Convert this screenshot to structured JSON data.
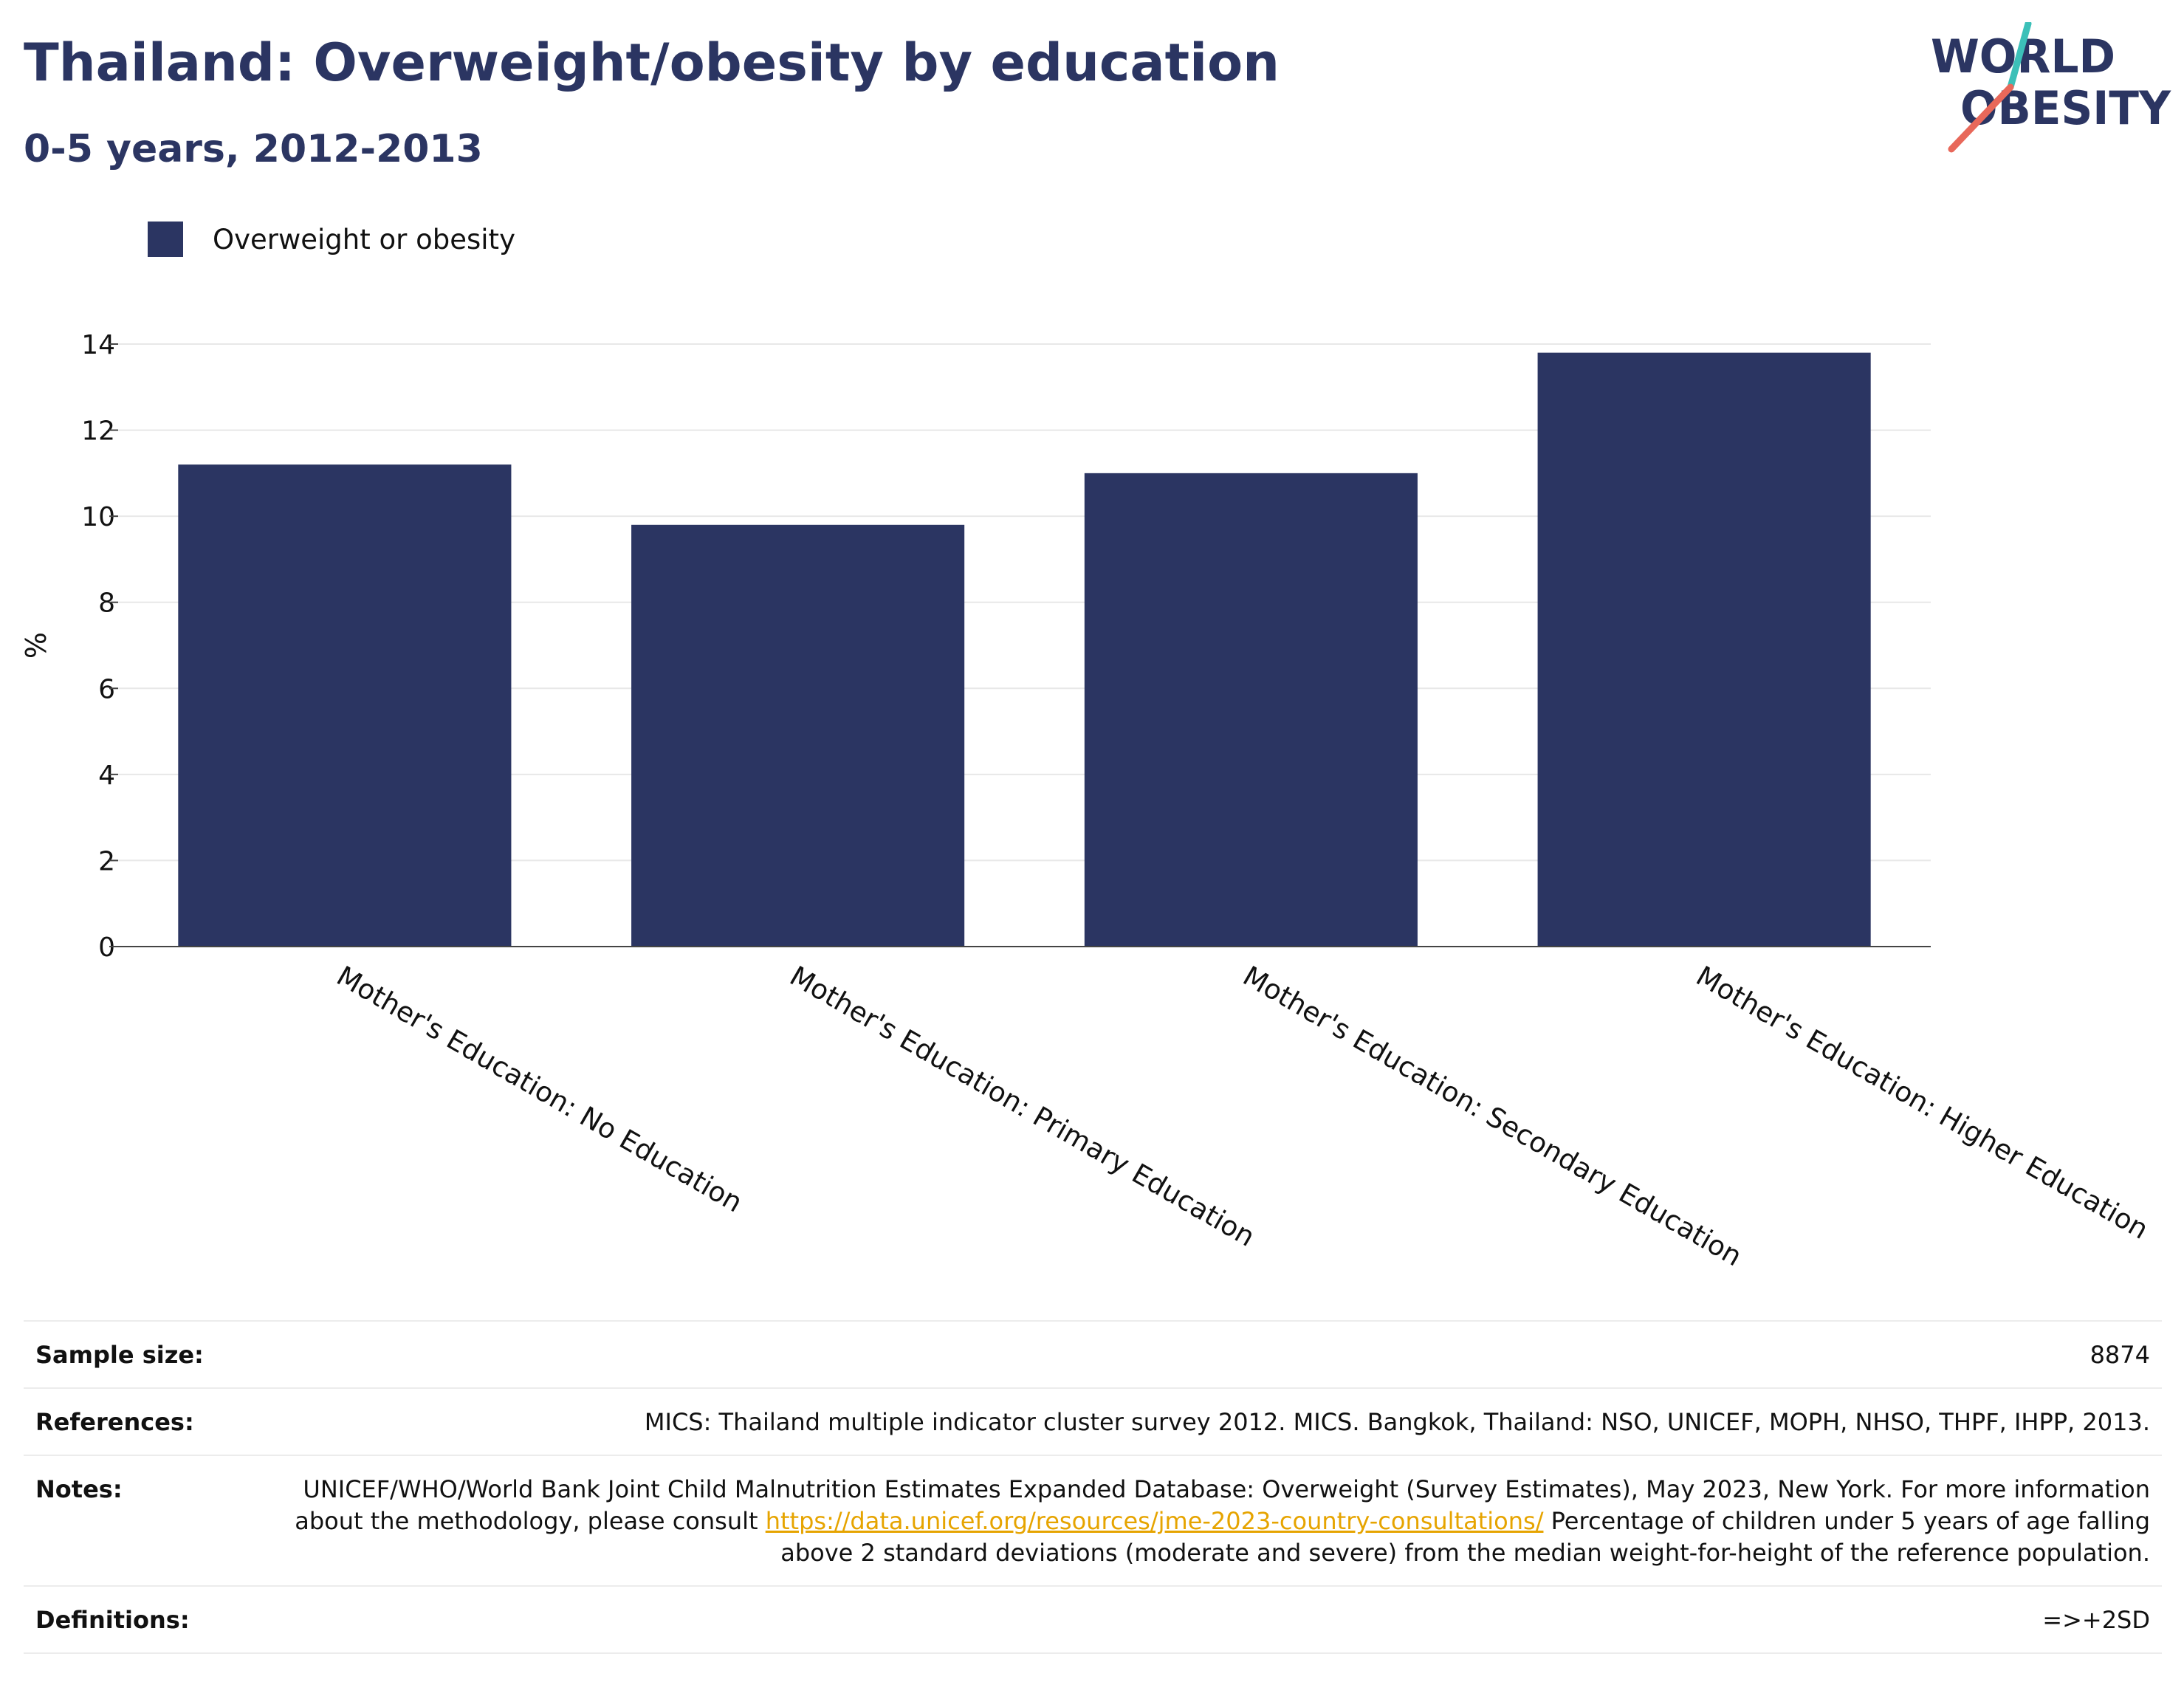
{
  "header": {
    "title": "Thailand: Overweight/obesity by education",
    "subtitle": "0-5 years, 2012-2013"
  },
  "logo": {
    "line1": "WORLD",
    "line2": "OBESITY"
  },
  "colors": {
    "bar": "#2b3562",
    "heading": "#2b3562",
    "link": "#e6a400",
    "logo_teal": "#3cc0b8",
    "logo_coral": "#e8685a"
  },
  "legend": {
    "label": "Overweight or obesity"
  },
  "chart_data": {
    "type": "bar",
    "categories": [
      "Mother's Education: No Education",
      "Mother's Education: Primary Education",
      "Mother's Education: Secondary Education",
      "Mother's Education: Higher Education"
    ],
    "series": [
      {
        "name": "Overweight or obesity",
        "values": [
          11.2,
          9.8,
          11.0,
          13.8
        ]
      }
    ],
    "ylabel": "%",
    "ylim": [
      0,
      14
    ],
    "yticks": [
      0,
      2,
      4,
      6,
      8,
      10,
      12,
      14
    ],
    "grid": true,
    "legend_position": "top-left"
  },
  "footer": {
    "sample_size_label": "Sample size:",
    "sample_size_value": "8874",
    "references_label": "References:",
    "references_value": "MICS: Thailand multiple indicator cluster survey 2012. MICS. Bangkok, Thailand: NSO, UNICEF, MOPH, NHSO, THPF, IHPP, 2013.",
    "notes_label": "Notes:",
    "notes_text1": "UNICEF/WHO/World Bank Joint Child Malnutrition Estimates Expanded Database: Overweight (Survey Estimates), May 2023, New York. For more information about the methodology, please consult",
    "notes_link": "https://data.unicef.org/resources/jme-2023-country-consultations/",
    "notes_text2": "Percentage of children under 5 years of age falling above 2 standard deviations (moderate and severe) from the median weight-for-height of the reference population.",
    "definitions_label": "Definitions:",
    "definitions_value": "=>+2SD"
  }
}
